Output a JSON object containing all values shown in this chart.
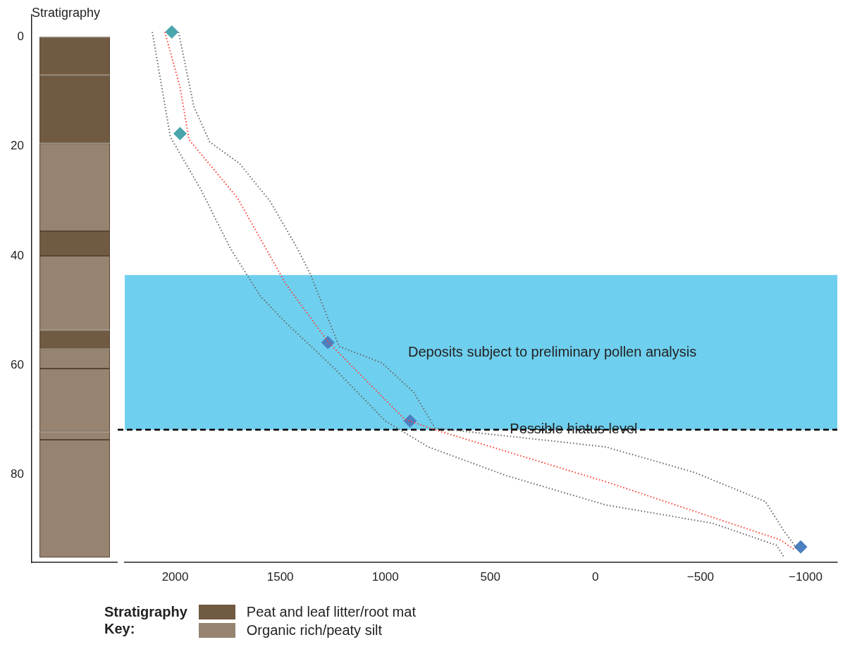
{
  "chart_data": [
    {
      "type": "bar",
      "title": "Stratigraphy",
      "stacked": true,
      "categories": [
        null
      ],
      "ylim": [
        96,
        -4
      ],
      "yticks": [
        0,
        20,
        40,
        60,
        80
      ],
      "tick_labels": "y",
      "grid": false,
      "legend": "bottom",
      "legend_title": "Stratigraphy Key:",
      "series": [
        {
          "name": "Peat and leaf litter/root mat",
          "color": "#705a42",
          "values": [
            7
          ]
        },
        {
          "color": "#705a42",
          "values": [
            12.5
          ]
        },
        {
          "name": "Organic rich/peaty silt",
          "color": "#968471",
          "values": [
            16
          ]
        },
        {
          "color": "#705a42",
          "values": [
            4.5
          ]
        },
        {
          "color": "#968471",
          "values": [
            13.6
          ]
        },
        {
          "color": "#705a42",
          "values": [
            3.5
          ]
        },
        {
          "color": "#968471",
          "values": [
            3.5
          ]
        },
        {
          "color": "#968471",
          "values": [
            11.5
          ]
        },
        {
          "color": "#968471",
          "values": [
            1.5
          ]
        },
        {
          "color": "#968471",
          "values": [
            21.5
          ]
        }
      ]
    },
    {
      "type": "line",
      "xlim": [
        2240,
        -1151
      ],
      "xticks": [
        2000,
        1500,
        1000,
        500,
        0,
        {
          "value": -500,
          "label": "−500"
        },
        {
          "value": -1000,
          "label": "−1000"
        }
      ],
      "ylim": [
        96,
        0
      ],
      "yticks": [
        0,
        20,
        40,
        60,
        80
      ],
      "tick_labels": "x",
      "grid": false,
      "line_style": "dotted",
      "marker": "none",
      "bands": [
        {
          "axis": "y",
          "from": 44,
          "to": 72,
          "label": "Deposits subject to preliminary pollen analysis",
          "color": "#6fcfee"
        }
      ],
      "ref_lines": [
        {
          "axis": "y",
          "value": 72,
          "label": "Possible hiatus level",
          "color": "#000000",
          "line_style": "dashed"
        }
      ],
      "series": [
        {
          "color": "#666666",
          "x": [
            1984,
            1911,
            1836,
            1694,
            1549,
            1418,
            1355,
            1220,
            1016,
            865,
            763,
            -49,
            -470,
            -809,
            -895,
            -961
          ],
          "values": [
            0,
            13.5,
            19.9,
            23.8,
            30.6,
            39.2,
            44,
            56.9,
            59.9,
            65.2,
            71.7,
            75.1,
            79.7,
            85,
            90.2,
            93.6
          ]
        },
        {
          "color": "#666666",
          "x": [
            2109,
            2023,
            1878,
            1737,
            1595,
            1474,
            1253,
            1000,
            796,
            424,
            -49,
            -556,
            -862,
            -895
          ],
          "values": [
            0,
            19,
            28.5,
            39.2,
            47.8,
            52.6,
            60.5,
            70.4,
            75.1,
            80.3,
            85.6,
            88.9,
            92.9,
            94.9
          ]
        },
        {
          "color": "#ff3b30",
          "x": [
            2049,
            1977,
            1934,
            1704,
            1474,
            1270,
            908,
            763,
            -49,
            -878,
            -944
          ],
          "values": [
            0,
            10,
            19.5,
            30,
            45.6,
            56.2,
            70.1,
            72,
            81.4,
            91.9,
            93.6
          ]
        },
        {
          "type": "scatter",
          "marker": "diamond",
          "color": "#4a80c0",
          "colors": [
            "#4aa5ad",
            "#4aa5ad",
            "#4a80c0",
            "#4a80c0",
            "#4a80c0"
          ],
          "x": [
            2016,
            1977,
            1273,
            882,
            -977
          ],
          "values": [
            0,
            18.4,
            56.2,
            70.4,
            93.2
          ]
        }
      ]
    }
  ]
}
